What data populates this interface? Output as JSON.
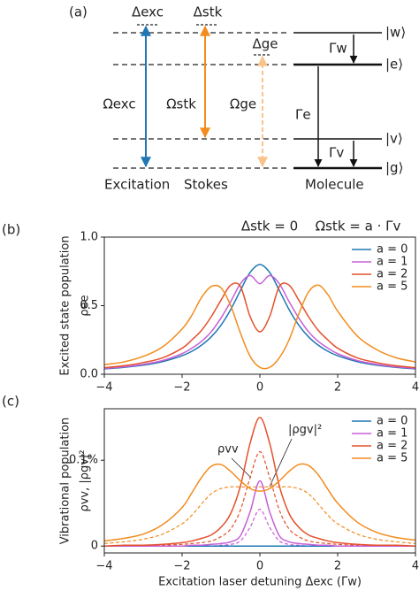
{
  "diagram": {
    "label": "(a)",
    "detunings": [
      "Δexc",
      "Δstk",
      "Δge"
    ],
    "rabi": [
      "Ωexc",
      "Ωstk",
      "Ωge"
    ],
    "states": [
      "|w⟩",
      "|e⟩",
      "|v⟩",
      "|g⟩"
    ],
    "decays": [
      "Γw",
      "Γe",
      "Γv"
    ],
    "columns": [
      "Excitation",
      "Stokes",
      "Molecule"
    ]
  },
  "chart_data": [
    {
      "type": "line",
      "panel": "(b)",
      "title": [
        "Δstk = 0",
        "Ωstk = a · Γv"
      ],
      "y_label": [
        "Excited state population",
        "ρee"
      ],
      "x": [
        -4,
        -3.5,
        -3,
        -2.5,
        -2,
        -1.75,
        -1.5,
        -1.25,
        -1,
        -0.75,
        -0.5,
        -0.25,
        0,
        0.25,
        0.5,
        0.75,
        1,
        1.25,
        1.5,
        1.75,
        2,
        2.5,
        3,
        3.5,
        4
      ],
      "xlim": [
        -4,
        4
      ],
      "xticks": [
        {
          "value": -4,
          "label": "−4"
        },
        {
          "value": -2,
          "label": "−2"
        },
        0,
        2,
        4
      ],
      "ylim": [
        0,
        1
      ],
      "yticks": [
        {
          "value": 0,
          "label": "0.0"
        },
        0.5,
        {
          "value": 1,
          "label": "1.0"
        }
      ],
      "legend": "upper right",
      "series": [
        {
          "name": "a = 0",
          "color": "#1f77b4",
          "values": [
            0.039,
            0.05,
            0.066,
            0.092,
            0.135,
            0.167,
            0.212,
            0.273,
            0.358,
            0.472,
            0.611,
            0.743,
            0.8,
            0.743,
            0.611,
            0.472,
            0.358,
            0.273,
            0.212,
            0.167,
            0.135,
            0.092,
            0.066,
            0.05,
            0.039
          ]
        },
        {
          "name": "a = 1",
          "color": "#c65fd6",
          "values": [
            0.042,
            0.054,
            0.072,
            0.1,
            0.15,
            0.19,
            0.24,
            0.31,
            0.41,
            0.53,
            0.66,
            0.72,
            0.66,
            0.72,
            0.66,
            0.53,
            0.41,
            0.31,
            0.24,
            0.19,
            0.15,
            0.1,
            0.072,
            0.054,
            0.042
          ]
        },
        {
          "name": "a = 2",
          "color": "#e4512b",
          "values": [
            0.048,
            0.062,
            0.085,
            0.12,
            0.19,
            0.25,
            0.32,
            0.42,
            0.54,
            0.65,
            0.64,
            0.42,
            0.31,
            0.42,
            0.64,
            0.65,
            0.54,
            0.42,
            0.32,
            0.25,
            0.19,
            0.12,
            0.085,
            0.062,
            0.048
          ]
        },
        {
          "name": "a = 5",
          "color": "#f28c1e",
          "values": [
            0.07,
            0.09,
            0.13,
            0.2,
            0.33,
            0.43,
            0.56,
            0.64,
            0.63,
            0.5,
            0.3,
            0.13,
            0.05,
            0.05,
            0.12,
            0.25,
            0.44,
            0.6,
            0.65,
            0.58,
            0.46,
            0.28,
            0.18,
            0.12,
            0.09
          ]
        }
      ]
    },
    {
      "type": "line",
      "panel": "(c)",
      "x_label": "Excitation laser detuning Δexc (Γw)",
      "y_label": [
        "Vibrational population",
        "ρvv, |ρgv|²"
      ],
      "annotations": [
        "ρvv",
        "|ρgv|²"
      ],
      "x": [
        -4,
        -3.5,
        -3,
        -2.5,
        -2,
        -1.75,
        -1.5,
        -1.25,
        -1,
        -0.75,
        -0.5,
        -0.25,
        0,
        0.25,
        0.5,
        0.75,
        1,
        1.25,
        1.5,
        1.75,
        2,
        2.5,
        3,
        3.5,
        4
      ],
      "xlim": [
        -4,
        4
      ],
      "xticks": [
        {
          "value": -4,
          "label": "−4"
        },
        {
          "value": -2,
          "label": "−2"
        },
        0,
        2,
        4
      ],
      "ylim": [
        -0.008,
        0.16
      ],
      "yticks": [
        0,
        {
          "value": 0.1,
          "label": "0.1%"
        }
      ],
      "legend": "upper right",
      "series": [
        {
          "color": "#1f77b4",
          "dashed": true,
          "values": [
            0,
            0,
            0,
            0,
            0,
            0,
            0,
            0,
            0,
            0,
            0,
            0,
            0,
            0,
            0,
            0,
            0,
            0,
            0,
            0,
            0,
            0,
            0,
            0,
            0
          ]
        },
        {
          "color": "#c65fd6",
          "dashed": true,
          "values": [
            0,
            0,
            0,
            0,
            0,
            0,
            0,
            0,
            0.001,
            0.002,
            0.006,
            0.022,
            0.043,
            0.022,
            0.006,
            0.002,
            0.001,
            0,
            0,
            0,
            0,
            0,
            0,
            0,
            0
          ]
        },
        {
          "color": "#e4512b",
          "dashed": true,
          "values": [
            0,
            0,
            0,
            0.001,
            0.002,
            0.003,
            0.004,
            0.006,
            0.011,
            0.02,
            0.042,
            0.08,
            0.11,
            0.08,
            0.042,
            0.02,
            0.011,
            0.006,
            0.004,
            0.003,
            0.002,
            0.001,
            0,
            0,
            0
          ]
        },
        {
          "color": "#f28c1e",
          "dashed": true,
          "values": [
            0.003,
            0.005,
            0.008,
            0.014,
            0.026,
            0.036,
            0.049,
            0.061,
            0.067,
            0.069,
            0.069,
            0.069,
            0.069,
            0.069,
            0.069,
            0.069,
            0.067,
            0.061,
            0.049,
            0.036,
            0.026,
            0.014,
            0.008,
            0.005,
            0.003
          ]
        },
        {
          "name": "a = 0",
          "color": "#1f77b4",
          "values": [
            0,
            0,
            0,
            0,
            0,
            0,
            0,
            0,
            0,
            0,
            0,
            0,
            0,
            0,
            0,
            0,
            0,
            0,
            0,
            0,
            0,
            0,
            0,
            0,
            0
          ]
        },
        {
          "name": "a = 1",
          "color": "#c65fd6",
          "values": [
            0,
            0,
            0,
            0,
            0,
            0.001,
            0.001,
            0.002,
            0.003,
            0.005,
            0.012,
            0.04,
            0.076,
            0.04,
            0.012,
            0.005,
            0.003,
            0.002,
            0.001,
            0.001,
            0,
            0,
            0,
            0,
            0
          ]
        },
        {
          "name": "a = 2",
          "color": "#e4512b",
          "values": [
            0,
            0.001,
            0.001,
            0.002,
            0.004,
            0.006,
            0.009,
            0.013,
            0.022,
            0.038,
            0.07,
            0.12,
            0.15,
            0.12,
            0.07,
            0.038,
            0.022,
            0.013,
            0.009,
            0.006,
            0.004,
            0.002,
            0.001,
            0.001,
            0
          ]
        },
        {
          "name": "a = 5",
          "color": "#f28c1e",
          "values": [
            0.006,
            0.009,
            0.014,
            0.025,
            0.045,
            0.062,
            0.08,
            0.093,
            0.095,
            0.087,
            0.076,
            0.067,
            0.064,
            0.067,
            0.076,
            0.087,
            0.095,
            0.094,
            0.083,
            0.066,
            0.05,
            0.028,
            0.016,
            0.01,
            0.007
          ]
        }
      ]
    }
  ]
}
